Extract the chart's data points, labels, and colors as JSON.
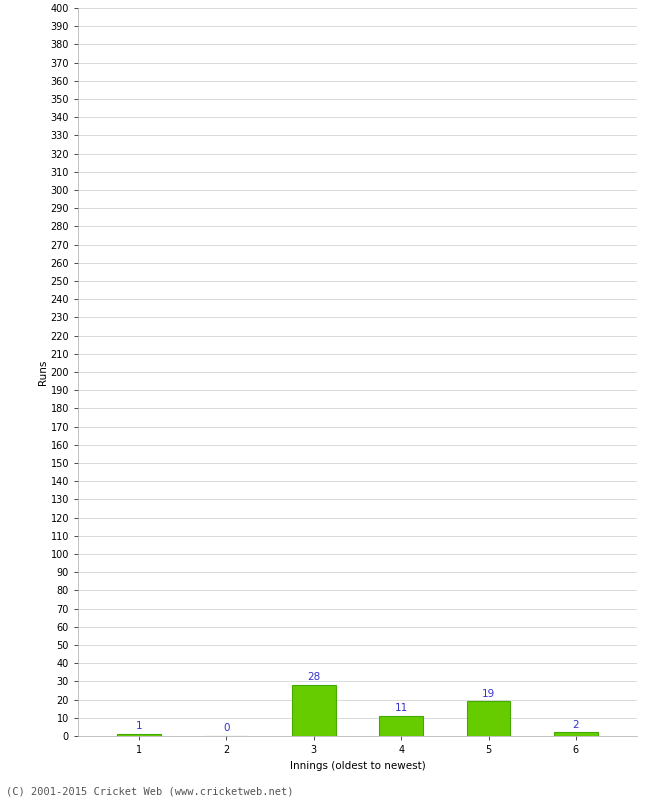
{
  "categories": [
    1,
    2,
    3,
    4,
    5,
    6
  ],
  "values": [
    1,
    0,
    28,
    11,
    19,
    2
  ],
  "bar_color": "#66cc00",
  "bar_edge_color": "#44aa00",
  "xlabel": "Innings (oldest to newest)",
  "ylabel": "Runs",
  "ylim": [
    0,
    400
  ],
  "ytick_step": 10,
  "value_label_color": "#3333cc",
  "value_label_fontsize": 7.5,
  "axis_label_fontsize": 7.5,
  "tick_label_fontsize": 7.0,
  "footer_text": "(C) 2001-2015 Cricket Web (www.cricketweb.net)",
  "footer_fontsize": 7.5,
  "background_color": "#ffffff",
  "grid_color": "#cccccc"
}
